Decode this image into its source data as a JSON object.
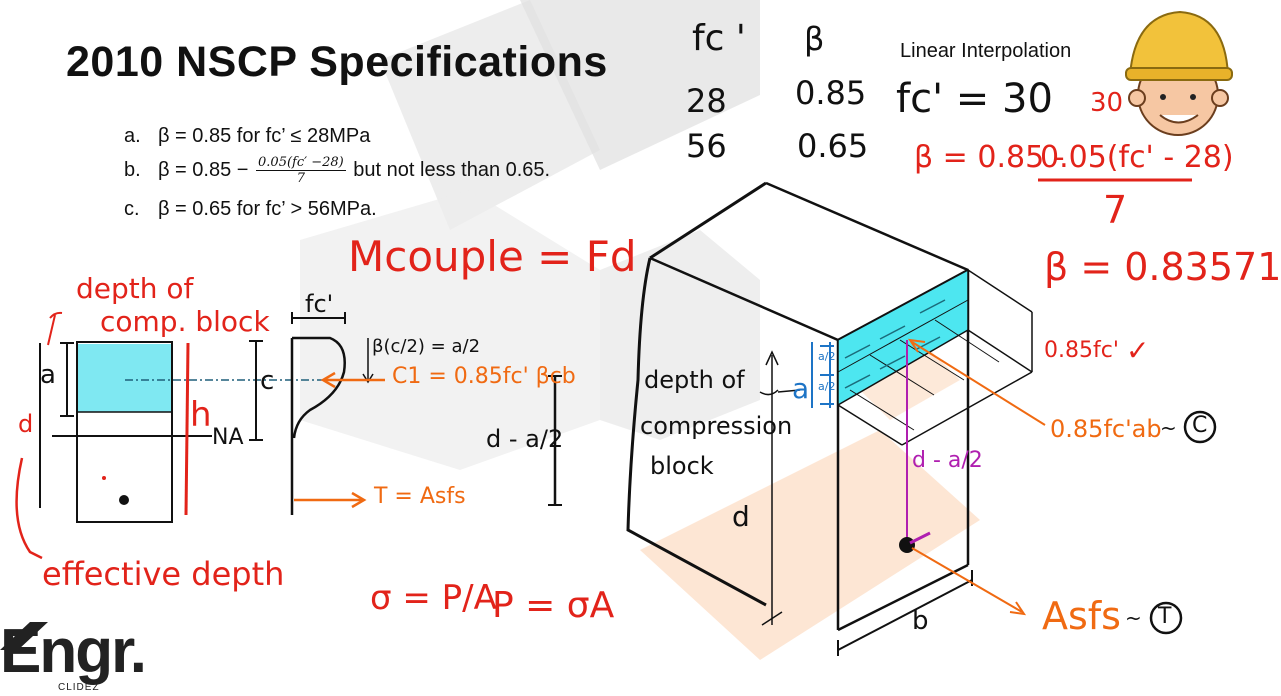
{
  "slide": {
    "title": "2010 NSCP Specifications",
    "specs": [
      {
        "label": "a.",
        "text": "β = 0.85 for fc’ ≤ 28MPa"
      },
      {
        "label": "b.",
        "lead": "β = 0.85 −",
        "num": "0.05(fc′ −28)",
        "den": "7",
        "tail": "but not less than 0.65."
      },
      {
        "label": "c.",
        "text": "β = 0.65 for fc’ > 56MPa."
      }
    ],
    "interp_title": "Linear Interpolation"
  },
  "table": {
    "col1": "fc '",
    "col2": "β",
    "rows": [
      [
        "28",
        "0.85"
      ],
      [
        "56",
        "0.65"
      ]
    ]
  },
  "calc": {
    "fc_given": "fc' = 30",
    "fc_value": "30",
    "beta_eq_lhs": "β = 0.85 -",
    "beta_eq_num": "0.05(fc' - 28)",
    "beta_eq_den": "7",
    "beta_result": "β = 0.83571"
  },
  "left_diagram": {
    "depth_note_1": "depth of",
    "depth_note_2": "comp. block",
    "a": "a",
    "d": "d",
    "c": "c",
    "h": "h",
    "na": "NA",
    "fc": "fc'",
    "beta_c": "β(c/2) = a/2",
    "c1": "C1 = 0.85fc' βcb",
    "d_minus": "d - a/2",
    "t": "T = Asfs",
    "effective_depth": "effective depth",
    "mcouple": "Mcouple = Fd",
    "sigma": "σ = P/A",
    "p": "P = σA"
  },
  "iso_diagram": {
    "depth_label_1": "depth of",
    "depth_label_2": "compression",
    "depth_label_3": "block",
    "a": "a",
    "d": "d",
    "b": "b",
    "a_half": "a/2",
    "d_minus": "d - a/2",
    "stress": "0.85fc'",
    "check": "✓",
    "force_c": "0.85fc'ab",
    "c_circle": "C",
    "force_t": "Asfs",
    "t_circle": "T"
  },
  "logo": {
    "main": "Engr.",
    "sub": "CLIDEZ"
  }
}
